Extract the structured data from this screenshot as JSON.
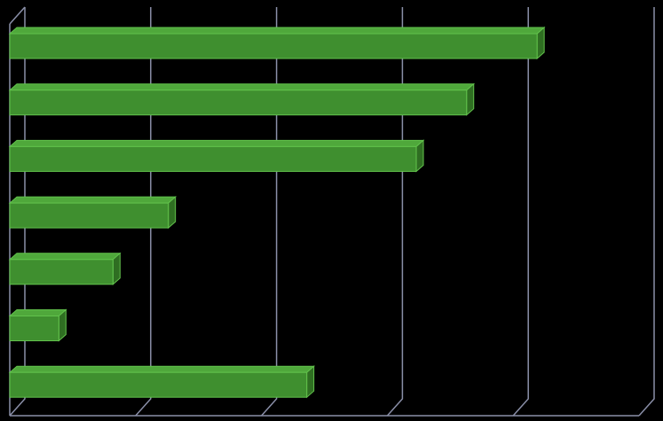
{
  "chart_data": {
    "type": "bar3d_horizontal",
    "categories": [
      null,
      null,
      null,
      null,
      null,
      null,
      null
    ],
    "values": [
      4.19,
      3.63,
      3.23,
      1.26,
      0.82,
      0.39,
      2.36
    ],
    "color": "#3f8f2f",
    "xlim": [
      0,
      5
    ],
    "xticks": [
      0,
      1,
      2,
      3,
      4,
      5
    ],
    "grid": true
  }
}
